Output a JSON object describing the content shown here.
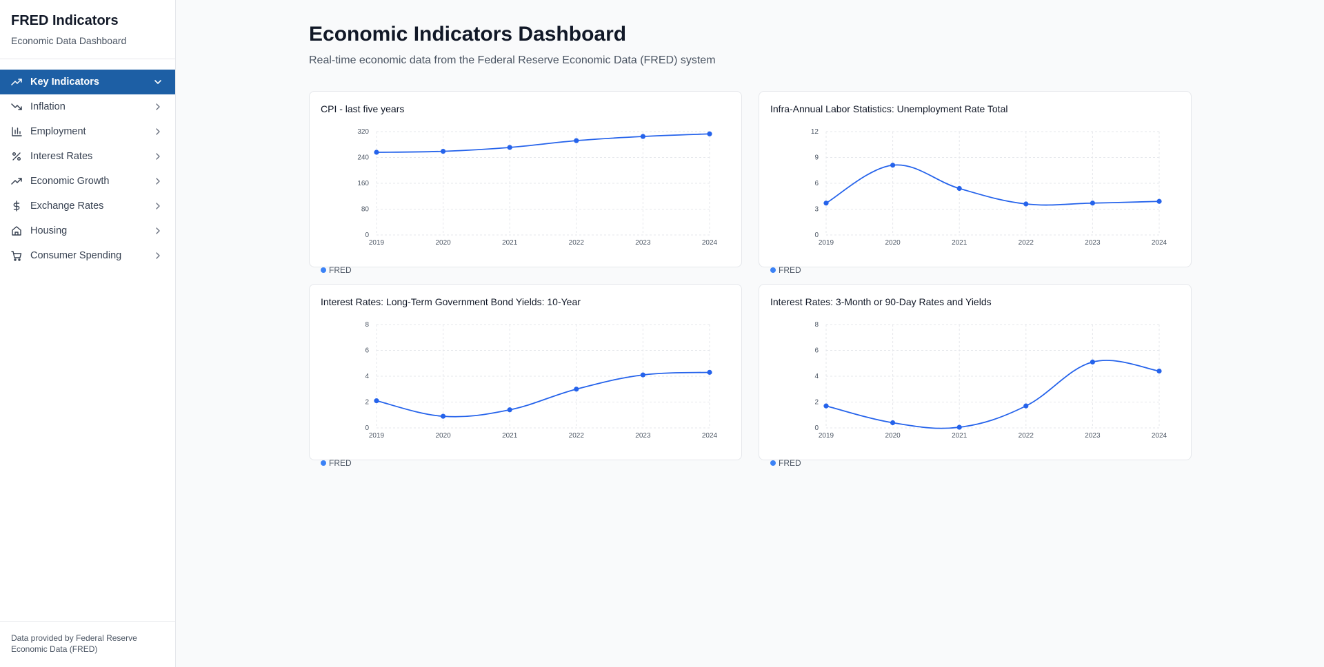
{
  "sidebar": {
    "title": "FRED Indicators",
    "subtitle": "Economic Data Dashboard",
    "items": [
      {
        "label": "Key Indicators",
        "icon": "trending-up-icon",
        "active": true
      },
      {
        "label": "Inflation",
        "icon": "trending-down-icon",
        "active": false
      },
      {
        "label": "Employment",
        "icon": "bar-chart-icon",
        "active": false
      },
      {
        "label": "Interest Rates",
        "icon": "percent-icon",
        "active": false
      },
      {
        "label": "Economic Growth",
        "icon": "trending-up-icon",
        "active": false
      },
      {
        "label": "Exchange Rates",
        "icon": "dollar-icon",
        "active": false
      },
      {
        "label": "Housing",
        "icon": "home-icon",
        "active": false
      },
      {
        "label": "Consumer Spending",
        "icon": "cart-icon",
        "active": false
      }
    ],
    "footer": "Data provided by Federal Reserve Economic Data (FRED)"
  },
  "main": {
    "title": "Economic Indicators Dashboard",
    "subtitle": "Real-time economic data from the Federal Reserve Economic Data (FRED) system"
  },
  "colors": {
    "accent": "#1d5fa5",
    "line": "#2563eb",
    "legend_dot": "#3b82f6"
  },
  "chart_data": [
    {
      "type": "line",
      "title": "CPI - last five years",
      "x": [
        "2019",
        "2020",
        "2021",
        "2022",
        "2023",
        "2024"
      ],
      "series": [
        {
          "name": "FRED",
          "values": [
            256,
            259,
            271,
            292,
            305,
            313
          ]
        }
      ],
      "ylim": [
        0,
        320
      ],
      "yticks": [
        "0",
        "80",
        "160",
        "240",
        "320"
      ],
      "grid": true,
      "legend": "bottom-left"
    },
    {
      "type": "line",
      "title": "Infra-Annual Labor Statistics: Unemployment Rate Total",
      "x": [
        "2019",
        "2020",
        "2021",
        "2022",
        "2023",
        "2024"
      ],
      "series": [
        {
          "name": "FRED",
          "values": [
            3.7,
            8.1,
            5.4,
            3.6,
            3.7,
            3.9
          ]
        }
      ],
      "ylim": [
        0,
        12
      ],
      "yticks": [
        "0",
        "3",
        "6",
        "9",
        "12"
      ],
      "grid": true,
      "legend": "bottom-left"
    },
    {
      "type": "line",
      "title": "Interest Rates: Long-Term Government Bond Yields: 10-Year",
      "x": [
        "2019",
        "2020",
        "2021",
        "2022",
        "2023",
        "2024"
      ],
      "series": [
        {
          "name": "FRED",
          "values": [
            2.1,
            0.9,
            1.4,
            3.0,
            4.1,
            4.3
          ]
        }
      ],
      "ylim": [
        0,
        8
      ],
      "yticks": [
        "0",
        "2",
        "4",
        "6",
        "8"
      ],
      "grid": true,
      "legend": "bottom-left"
    },
    {
      "type": "line",
      "title": "Interest Rates: 3-Month or 90-Day Rates and Yields",
      "x": [
        "2019",
        "2020",
        "2021",
        "2022",
        "2023",
        "2024"
      ],
      "series": [
        {
          "name": "FRED",
          "values": [
            1.7,
            0.4,
            0.05,
            1.7,
            5.1,
            4.4
          ]
        }
      ],
      "ylim": [
        0,
        8
      ],
      "yticks": [
        "0",
        "2",
        "4",
        "6",
        "8"
      ],
      "grid": true,
      "legend": "bottom-left"
    }
  ]
}
